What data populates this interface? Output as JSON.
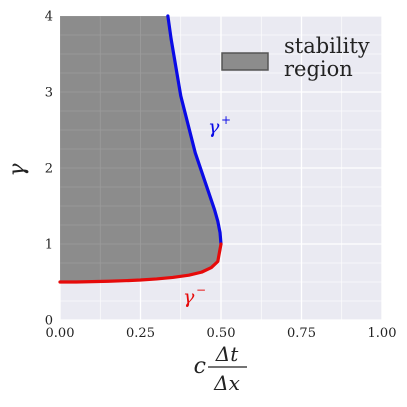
{
  "chart_data": {
    "type": "area",
    "xlim": [
      0,
      1
    ],
    "ylim": [
      0,
      4
    ],
    "x_ticks": [
      0,
      0.25,
      0.5,
      0.75,
      1
    ],
    "x_tick_labels": [
      "0.00",
      "0.25",
      "0.50",
      "0.75",
      "1.00"
    ],
    "y_ticks": [
      0,
      1,
      2,
      3,
      4
    ],
    "y_tick_labels": [
      "0",
      "1",
      "2",
      "3",
      "4"
    ],
    "grid": true,
    "xlabel": {
      "prefix": "c",
      "numerator": "Δt",
      "denominator": "Δx"
    },
    "ylabel": "γ",
    "legend": {
      "placement": "top-right",
      "lines": [
        "stability",
        "region"
      ]
    },
    "colors": {
      "background": "#EAEAF2",
      "grid": "#FFFFFF",
      "region": "#8C8C8C",
      "gamma_plus": "#0A0AE6",
      "gamma_minus": "#E60A0A"
    },
    "series": [
      {
        "name": "γ⁺",
        "label": {
          "base": "γ",
          "sup": "+"
        },
        "color": "#0A0AE6",
        "x": [
          0.335,
          0.345,
          0.355,
          0.365,
          0.375,
          0.39,
          0.405,
          0.42,
          0.44,
          0.46,
          0.48,
          0.49,
          0.497,
          0.5
        ],
        "y": [
          4.0,
          3.7,
          3.45,
          3.2,
          2.95,
          2.7,
          2.45,
          2.2,
          1.95,
          1.7,
          1.45,
          1.3,
          1.15,
          1.0
        ]
      },
      {
        "name": "γ⁻",
        "label": {
          "base": "γ",
          "sup": "−"
        },
        "color": "#E60A0A",
        "x": [
          0.0,
          0.05,
          0.1,
          0.15,
          0.2,
          0.25,
          0.3,
          0.35,
          0.4,
          0.44,
          0.47,
          0.49,
          0.5
        ],
        "y": [
          0.5,
          0.5,
          0.505,
          0.51,
          0.517,
          0.526,
          0.54,
          0.56,
          0.59,
          0.63,
          0.69,
          0.77,
          1.0
        ]
      }
    ]
  }
}
